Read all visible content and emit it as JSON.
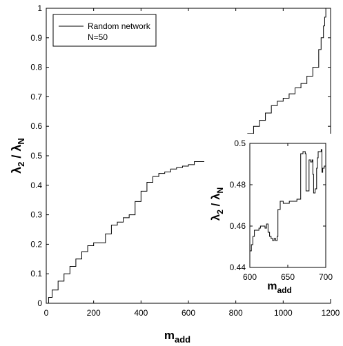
{
  "chart_data": [
    {
      "type": "line",
      "xlabel_main": "m",
      "xlabel_sub": "add",
      "ylabel": "λ₂ / λ_N",
      "ylabel_parts": {
        "l1": "λ",
        "s1": "2",
        "mid": " / ",
        "l2": "λ",
        "s2": "N"
      },
      "xlim": [
        0,
        1200
      ],
      "ylim": [
        0,
        1
      ],
      "xticks": [
        0,
        200,
        400,
        600,
        800,
        1000,
        1200
      ],
      "yticks": [
        0,
        0.1,
        0.2,
        0.3,
        0.4,
        0.5,
        0.6,
        0.7,
        0.8,
        0.9,
        1
      ],
      "ytick_labels": [
        "0",
        "0.1",
        "0.2",
        "0.3",
        "0.4",
        "0.5",
        "0.6",
        "0.7",
        "0.8",
        "0.9",
        "1"
      ],
      "legend": {
        "entries": [
          "Random network",
          "N=50"
        ],
        "placement": "top-left"
      },
      "series": [
        {
          "name": "Random network N=50",
          "x": [
            0,
            10,
            25,
            50,
            75,
            100,
            125,
            150,
            175,
            200,
            225,
            250,
            275,
            300,
            325,
            350,
            375,
            400,
            425,
            450,
            475,
            500,
            525,
            550,
            575,
            600,
            625,
            650,
            675,
            700,
            725,
            750,
            775,
            800,
            825,
            850,
            875,
            900,
            925,
            950,
            975,
            1000,
            1025,
            1050,
            1075,
            1100,
            1125,
            1150,
            1160,
            1170,
            1175,
            1180
          ],
          "y": [
            0,
            0.02,
            0.045,
            0.075,
            0.1,
            0.125,
            0.15,
            0.175,
            0.195,
            0.205,
            0.205,
            0.235,
            0.265,
            0.275,
            0.29,
            0.3,
            0.345,
            0.38,
            0.41,
            0.43,
            0.44,
            0.445,
            0.455,
            0.46,
            0.465,
            0.47,
            0.48,
            0.48,
            0.49,
            0.495,
            0.5,
            0.505,
            0.51,
            0.53,
            0.56,
            0.575,
            0.6,
            0.62,
            0.645,
            0.67,
            0.685,
            0.695,
            0.71,
            0.73,
            0.745,
            0.77,
            0.8,
            0.86,
            0.9,
            0.94,
            0.97,
            1.0
          ]
        }
      ]
    },
    {
      "type": "line",
      "inset": true,
      "xlabel_main": "m",
      "xlabel_sub": "add",
      "ylabel_parts": {
        "l1": "λ",
        "s1": "2",
        "mid": " / ",
        "l2": "λ",
        "s2": "N"
      },
      "xlim": [
        600,
        700
      ],
      "ylim": [
        0.44,
        0.5
      ],
      "xticks": [
        600,
        650,
        700
      ],
      "yticks": [
        0.44,
        0.46,
        0.48,
        0.5
      ],
      "ytick_labels": [
        "0.44",
        "0.46",
        "0.48",
        "0.5"
      ],
      "series": [
        {
          "name": "Random network N=50 (detail)",
          "x": [
            600,
            602,
            604,
            606,
            610,
            612,
            614,
            618,
            620,
            622,
            624,
            626,
            628,
            630,
            632,
            634,
            636,
            637,
            640,
            644,
            648,
            652,
            656,
            660,
            662,
            664,
            666,
            667,
            670,
            673,
            674,
            676,
            678,
            680,
            682,
            683,
            684,
            686,
            688,
            689,
            690,
            692,
            694,
            695,
            696,
            698,
            700
          ],
          "y": [
            0.448,
            0.451,
            0.455,
            0.458,
            0.458,
            0.459,
            0.46,
            0.46,
            0.459,
            0.461,
            0.457,
            0.455,
            0.454,
            0.453,
            0.454,
            0.453,
            0.455,
            0.468,
            0.472,
            0.471,
            0.471,
            0.472,
            0.472,
            0.472,
            0.473,
            0.473,
            0.473,
            0.495,
            0.496,
            0.495,
            0.477,
            0.477,
            0.492,
            0.491,
            0.492,
            0.485,
            0.476,
            0.478,
            0.488,
            0.493,
            0.496,
            0.496,
            0.497,
            0.486,
            0.488,
            0.489,
            0.489
          ]
        }
      ]
    }
  ]
}
